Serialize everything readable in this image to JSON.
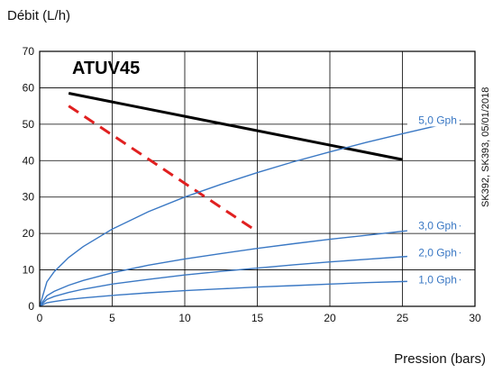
{
  "chart_data": {
    "type": "line",
    "title": "ATUV45",
    "xlabel": "Pression (bars)",
    "ylabel": "Débit (L/h)",
    "xlim": [
      0,
      30
    ],
    "ylim": [
      0,
      70
    ],
    "xticks": [
      0,
      5,
      10,
      15,
      20,
      25,
      30
    ],
    "yticks": [
      0,
      10,
      20,
      30,
      40,
      50,
      60,
      70
    ],
    "grid": true,
    "side_note": "SK392, SK393, 05/01/2018",
    "series": [
      {
        "name": "",
        "style": "solid",
        "color": "#000000",
        "x": [
          2,
          25
        ],
        "y": [
          58.5,
          40.3
        ]
      },
      {
        "name": "",
        "style": "dashed",
        "color": "#e02020",
        "x": [
          2,
          15
        ],
        "y": [
          55,
          20.5
        ]
      },
      {
        "name": "5,0 Gph",
        "style": "solid",
        "color": "#3a78c4",
        "x": [
          0,
          0.5,
          1,
          2,
          3,
          5,
          7.5,
          10,
          12.5,
          15,
          17.5,
          20,
          22.5,
          25,
          27.5,
          29
        ],
        "y": [
          0,
          6.7,
          9.5,
          13.4,
          16.4,
          21.2,
          26.0,
          30.0,
          33.5,
          36.7,
          39.7,
          42.4,
          45.0,
          47.4,
          49.7,
          51.1
        ]
      },
      {
        "name": "3,0 Gph",
        "style": "solid",
        "color": "#3a78c4",
        "x": [
          0,
          0.5,
          1,
          2,
          3,
          5,
          7.5,
          10,
          12.5,
          15,
          17.5,
          20,
          22.5,
          25,
          27.5,
          29
        ],
        "y": [
          0,
          2.9,
          4.1,
          5.8,
          7.1,
          9.2,
          11.3,
          13.0,
          14.5,
          15.9,
          17.2,
          18.4,
          19.5,
          20.6,
          21.6,
          22.1
        ]
      },
      {
        "name": "2,0 Gph",
        "style": "solid",
        "color": "#3a78c4",
        "x": [
          0,
          0.5,
          1,
          2,
          3,
          5,
          7.5,
          10,
          12.5,
          15,
          17.5,
          20,
          22.5,
          25,
          27.5,
          29
        ],
        "y": [
          0,
          1.9,
          2.7,
          3.8,
          4.7,
          6.1,
          7.4,
          8.6,
          9.6,
          10.5,
          11.4,
          12.2,
          12.9,
          13.6,
          14.3,
          14.7
        ]
      },
      {
        "name": "1,0 Gph",
        "style": "solid",
        "color": "#3a78c4",
        "x": [
          0,
          0.5,
          1,
          2,
          3,
          5,
          7.5,
          10,
          12.5,
          15,
          17.5,
          20,
          22.5,
          25,
          27.5,
          29
        ],
        "y": [
          0,
          1.0,
          1.3,
          1.9,
          2.3,
          3.0,
          3.7,
          4.3,
          4.8,
          5.3,
          5.7,
          6.1,
          6.5,
          6.8,
          7.1,
          7.3
        ]
      }
    ]
  }
}
